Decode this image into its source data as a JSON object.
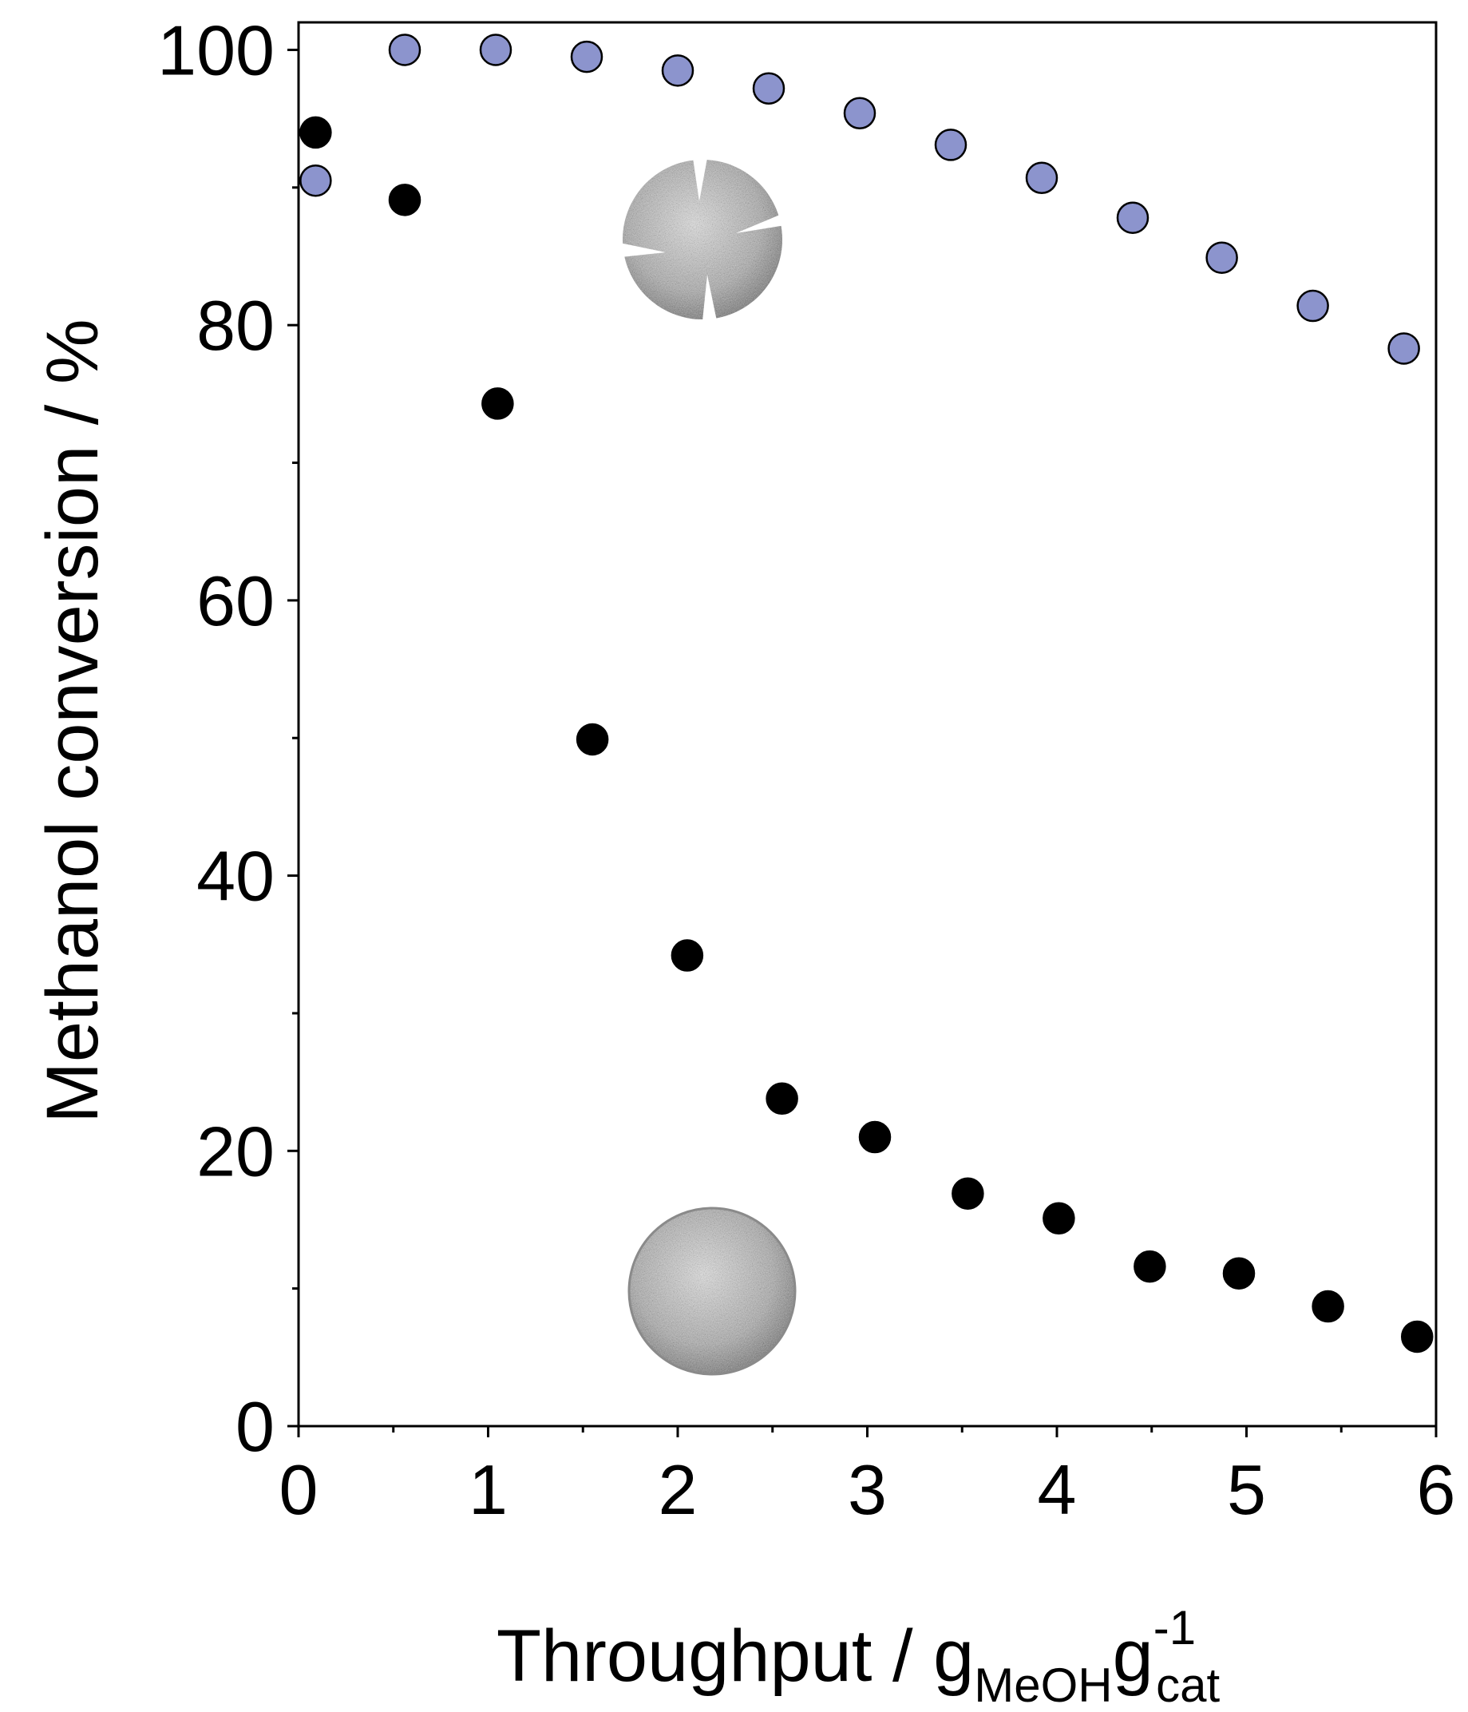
{
  "chart_data": {
    "type": "scatter",
    "xlabel": "Throughput / g",
    "xlabel_sub1": "MeOH",
    "xlabel_mid": "g",
    "xlabel_sup": "-1",
    "xlabel_sub2": "cat",
    "ylabel": "Methanol conversion / %",
    "xlim": [
      0,
      6
    ],
    "ylim": [
      0,
      102
    ],
    "xticks": [
      0,
      1,
      2,
      3,
      4,
      5,
      6
    ],
    "yticks": [
      0,
      20,
      40,
      60,
      80,
      100
    ],
    "grid": false,
    "series": [
      {
        "color": "#8c94cd",
        "x": [
          0.09,
          0.56,
          1.04,
          1.52,
          2.0,
          2.48,
          2.96,
          3.44,
          3.92,
          4.4,
          4.87,
          5.35,
          5.83
        ],
        "y": [
          90.5,
          100.0,
          100.0,
          99.5,
          98.5,
          97.2,
          95.4,
          93.1,
          90.7,
          87.8,
          84.9,
          81.4,
          78.3
        ]
      },
      {
        "color": "#000000",
        "x": [
          0.09,
          0.56,
          1.05,
          1.55,
          2.05,
          2.55,
          3.04,
          3.53,
          4.01,
          4.49,
          4.96,
          5.43,
          5.9
        ],
        "y": [
          94.0,
          89.1,
          74.3,
          49.9,
          34.2,
          23.8,
          21.0,
          16.9,
          15.1,
          11.6,
          11.1,
          8.7,
          6.5
        ]
      }
    ],
    "annotations": [
      {
        "kind": "cracked-catalyst-pellet-image"
      },
      {
        "kind": "intact-catalyst-pellet-image"
      }
    ]
  }
}
